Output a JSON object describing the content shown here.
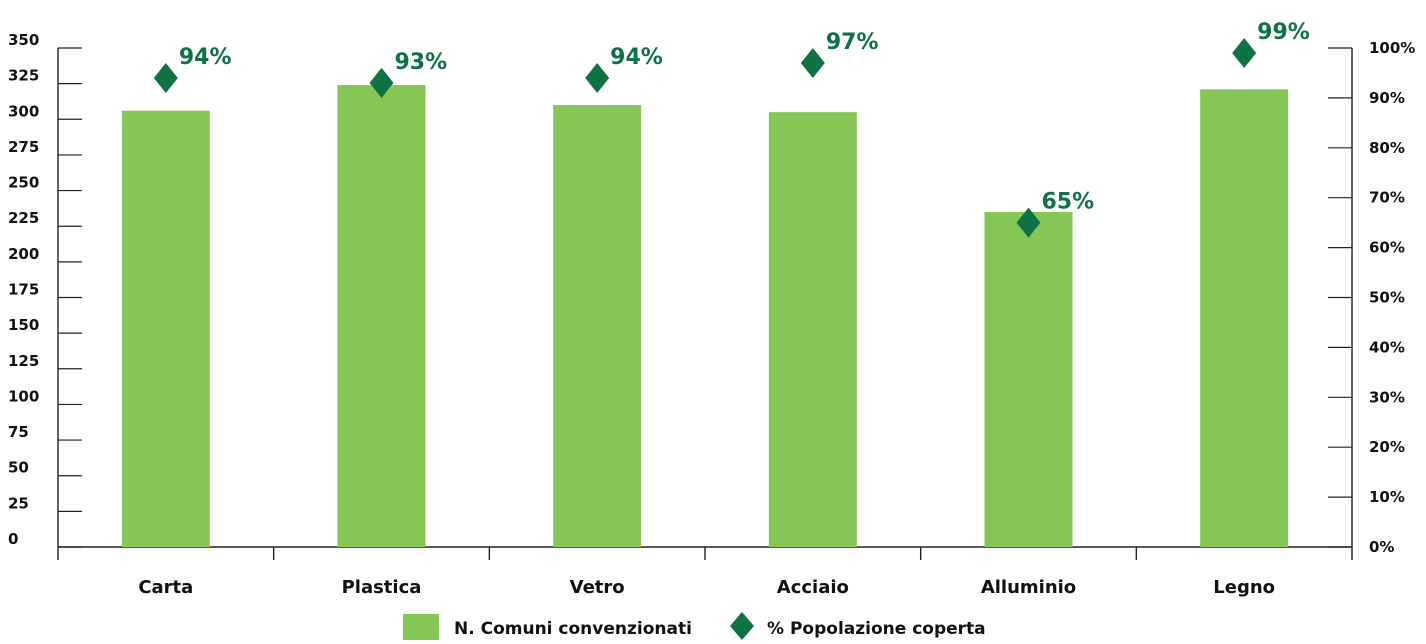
{
  "chart_data": {
    "type": "bar",
    "categories": [
      "Carta",
      "Plastica",
      "Vetro",
      "Acciaio",
      "Alluminio",
      "Legno"
    ],
    "series": [
      {
        "name": "N. Comuni convenzionati",
        "type": "bar",
        "axis": "left",
        "color": "#86c657",
        "values": [
          306,
          324,
          310,
          305,
          235,
          321
        ]
      },
      {
        "name": "% Popolazione coperta",
        "type": "scatter",
        "marker": "diamond",
        "axis": "right",
        "color": "#0f7244",
        "values": [
          94,
          93,
          94,
          97,
          65,
          99
        ],
        "data_labels": [
          "94%",
          "93%",
          "94%",
          "97%",
          "65%",
          "99%"
        ]
      }
    ],
    "y_left": {
      "ylim": [
        0,
        350
      ],
      "ticks": [
        "0",
        "25",
        "50",
        "75",
        "100",
        "125",
        "150",
        "175",
        "200",
        "225",
        "250",
        "275",
        "300",
        "325",
        "350"
      ]
    },
    "y_right": {
      "ylim": [
        0,
        100
      ],
      "ticks": [
        "0%",
        "10%",
        "20%",
        "30%",
        "40%",
        "50%",
        "60%",
        "70%",
        "80%",
        "90%",
        "100%"
      ]
    },
    "title": "",
    "xlabel": "",
    "grid": false,
    "legend_position": "bottom-center",
    "label_color": "#0f7244",
    "text_color": "#111111",
    "axis_color": "#222222"
  }
}
